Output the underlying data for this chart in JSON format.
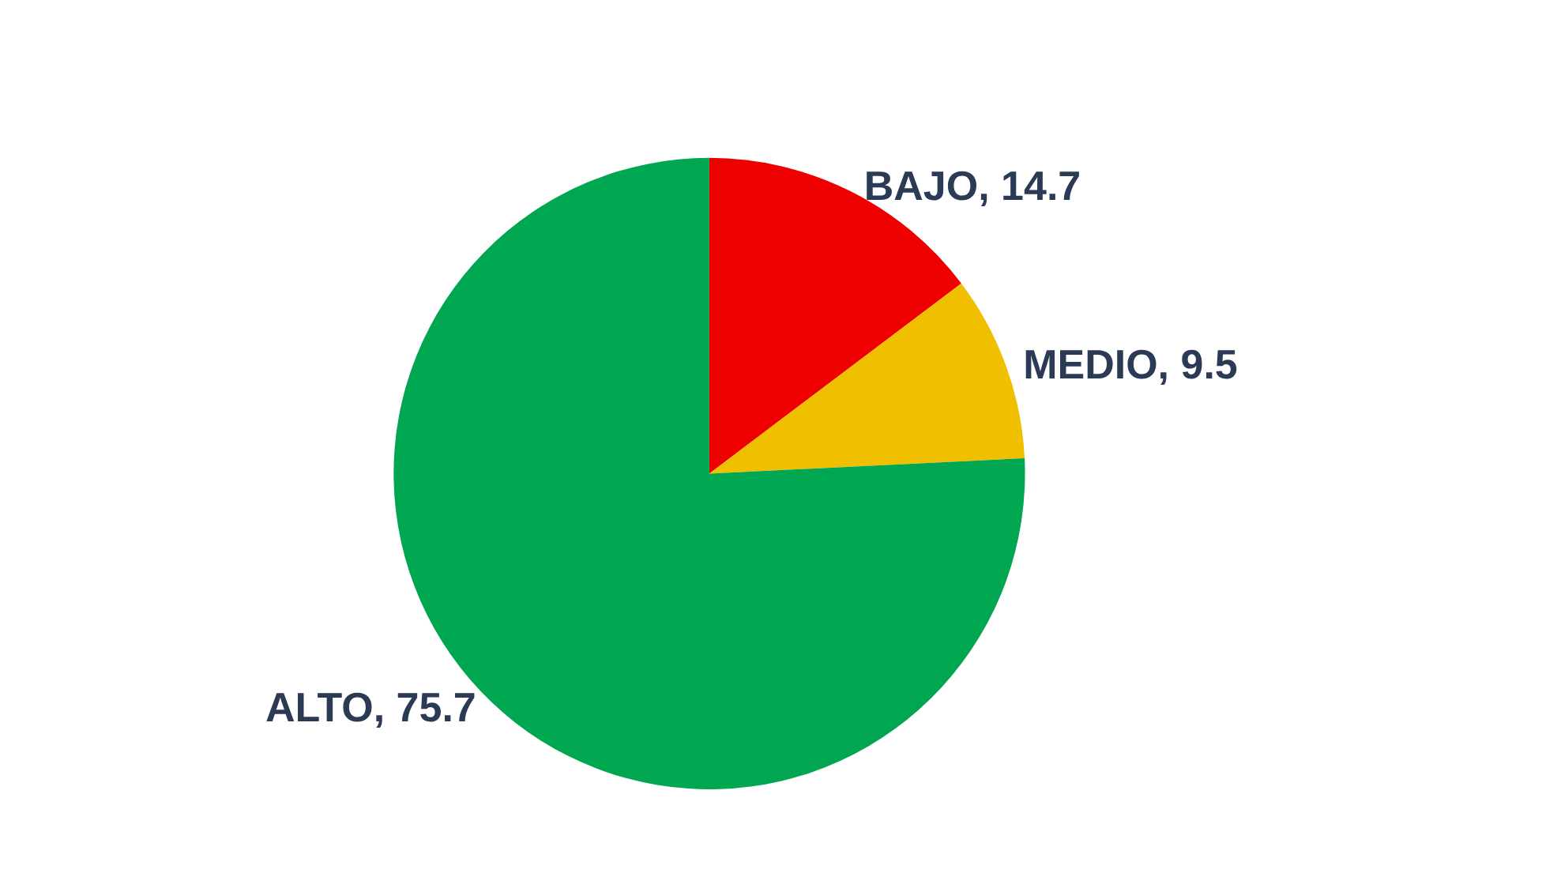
{
  "chart_data": {
    "type": "pie",
    "categories": [
      "BAJO",
      "MEDIO",
      "ALTO"
    ],
    "values": [
      14.7,
      9.5,
      75.7
    ],
    "value_labels": [
      ", 14.7",
      ", 9.5",
      ", 75.7"
    ],
    "colors": [
      "#ee0000",
      "#f0c000",
      "#00a650"
    ]
  }
}
